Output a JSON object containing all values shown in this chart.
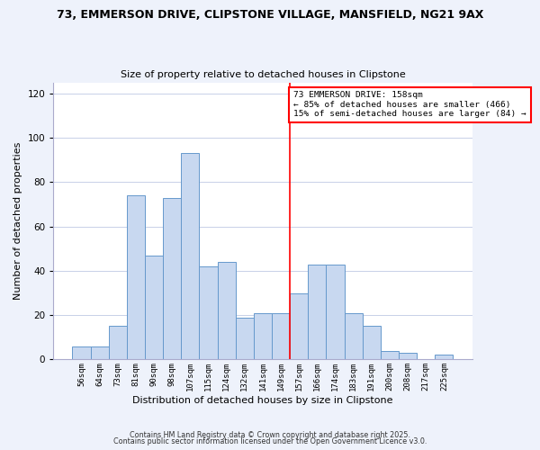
{
  "title_line1": "73, EMMERSON DRIVE, CLIPSTONE VILLAGE, MANSFIELD, NG21 9AX",
  "title_line2": "Size of property relative to detached houses in Clipstone",
  "xlabel": "Distribution of detached houses by size in Clipstone",
  "ylabel": "Number of detached properties",
  "bar_labels": [
    "56sqm",
    "64sqm",
    "73sqm",
    "81sqm",
    "90sqm",
    "98sqm",
    "107sqm",
    "115sqm",
    "124sqm",
    "132sqm",
    "141sqm",
    "149sqm",
    "157sqm",
    "166sqm",
    "174sqm",
    "183sqm",
    "191sqm",
    "200sqm",
    "208sqm",
    "217sqm",
    "225sqm"
  ],
  "bar_values": [
    6,
    6,
    15,
    74,
    47,
    73,
    93,
    42,
    44,
    19,
    21,
    21,
    30,
    43,
    43,
    21,
    15,
    4,
    3,
    0,
    2
  ],
  "bar_color": "#c8d8f0",
  "bar_edge_color": "#6699cc",
  "vline_x_index": 12,
  "vline_color": "red",
  "annotation_line1": "73 EMMERSON DRIVE: 158sqm",
  "annotation_line2": "← 85% of detached houses are smaller (466)",
  "annotation_line3": "15% of semi-detached houses are larger (84) →",
  "annotation_box_edge": "red",
  "ylim": [
    0,
    125
  ],
  "yticks": [
    0,
    20,
    40,
    60,
    80,
    100,
    120
  ],
  "footnote1": "Contains HM Land Registry data © Crown copyright and database right 2025.",
  "footnote2": "Contains public sector information licensed under the Open Government Licence v3.0.",
  "bg_color": "#eef2fb",
  "plot_bg_color": "#ffffff",
  "grid_color": "#c8d0e8"
}
